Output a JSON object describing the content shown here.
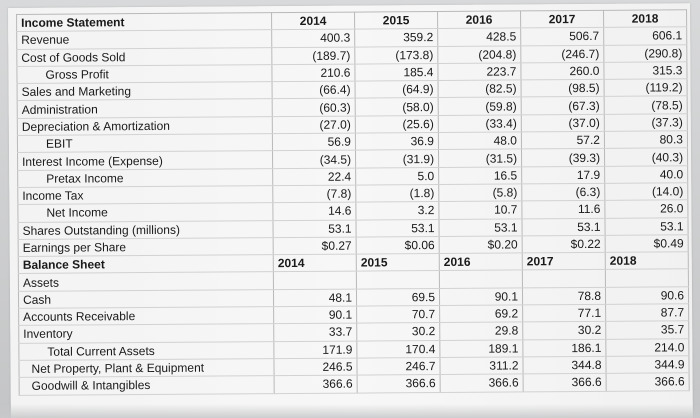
{
  "years": [
    "2014",
    "2015",
    "2016",
    "2017",
    "2018"
  ],
  "income_statement": {
    "title": "Income Statement",
    "rows": [
      {
        "label": "Revenue",
        "values": [
          "400.3",
          "359.2",
          "428.5",
          "506.7",
          "606.1"
        ]
      },
      {
        "label": "Cost of Goods Sold",
        "values": [
          "(189.7)",
          "(173.8)",
          "(204.8)",
          "(246.7)",
          "(290.8)"
        ]
      },
      {
        "label": "Gross Profit",
        "values": [
          "210.6",
          "185.4",
          "223.7",
          "260.0",
          "315.3"
        ]
      },
      {
        "label": "Sales and Marketing",
        "values": [
          "(66.4)",
          "(64.9)",
          "(82.5)",
          "(98.5)",
          "(119.2)"
        ]
      },
      {
        "label": "Administration",
        "values": [
          "(60.3)",
          "(58.0)",
          "(59.8)",
          "(67.3)",
          "(78.5)"
        ]
      },
      {
        "label": "Depreciation & Amortization",
        "values": [
          "(27.0)",
          "(25.6)",
          "(33.4)",
          "(37.0)",
          "(37.3)"
        ]
      },
      {
        "label": "EBIT",
        "values": [
          "56.9",
          "36.9",
          "48.0",
          "57.2",
          "80.3"
        ]
      },
      {
        "label": "Interest Income (Expense)",
        "values": [
          "(34.5)",
          "(31.9)",
          "(31.5)",
          "(39.3)",
          "(40.3)"
        ]
      },
      {
        "label": "Pretax Income",
        "values": [
          "22.4",
          "5.0",
          "16.5",
          "17.9",
          "40.0"
        ]
      },
      {
        "label": "Income Tax",
        "values": [
          "(7.8)",
          "(1.8)",
          "(5.8)",
          "(6.3)",
          "(14.0)"
        ]
      },
      {
        "label": "Net Income",
        "values": [
          "14.6",
          "3.2",
          "10.7",
          "11.6",
          "26.0"
        ]
      },
      {
        "label": "Shares Outstanding (millions)",
        "values": [
          "53.1",
          "53.1",
          "53.1",
          "53.1",
          "53.1"
        ]
      },
      {
        "label": "Earnings per Share",
        "values": [
          "$0.27",
          "$0.06",
          "$0.20",
          "$0.22",
          "$0.49"
        ]
      }
    ]
  },
  "balance_sheet": {
    "title": "Balance Sheet",
    "assets_label": "Assets",
    "rows": [
      {
        "label": "Cash",
        "values": [
          "48.1",
          "69.5",
          "90.1",
          "78.8",
          "90.6"
        ]
      },
      {
        "label": "Accounts Receivable",
        "values": [
          "90.1",
          "70.7",
          "69.2",
          "77.1",
          "87.7"
        ]
      },
      {
        "label": "Inventory",
        "values": [
          "33.7",
          "30.2",
          "29.8",
          "30.2",
          "35.7"
        ]
      },
      {
        "label": "Total Current Assets",
        "values": [
          "171.9",
          "170.4",
          "189.1",
          "186.1",
          "214.0"
        ]
      },
      {
        "label": "Net Property, Plant & Equipment",
        "values": [
          "246.5",
          "246.7",
          "311.2",
          "344.8",
          "344.9"
        ]
      },
      {
        "label": "Goodwill & Intangibles",
        "values": [
          "366.6",
          "366.6",
          "366.6",
          "366.6",
          "366.6"
        ]
      }
    ]
  }
}
